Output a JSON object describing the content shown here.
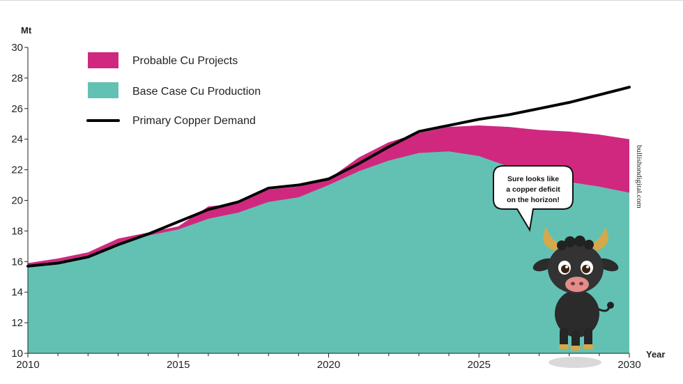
{
  "chart_data": {
    "type": "area",
    "y_unit_label": "Mt",
    "x_axis_label": "Year",
    "xlim": [
      2010,
      2030
    ],
    "ylim": [
      10,
      30
    ],
    "x_ticks": [
      2010,
      2015,
      2020,
      2025,
      2030
    ],
    "y_ticks": [
      10,
      12,
      14,
      16,
      18,
      20,
      22,
      24,
      26,
      28,
      30
    ],
    "grid": false,
    "legend_position": "top-left",
    "x": [
      2010,
      2011,
      2012,
      2013,
      2014,
      2015,
      2016,
      2017,
      2018,
      2019,
      2020,
      2021,
      2022,
      2023,
      2024,
      2025,
      2026,
      2027,
      2028,
      2029,
      2030
    ],
    "series": [
      {
        "name": "Probable Cu Projects",
        "kind": "area-top",
        "color": "#d0287f",
        "values": [
          15.9,
          16.2,
          16.6,
          17.5,
          17.9,
          18.3,
          19.6,
          19.8,
          20.7,
          20.9,
          21.4,
          22.8,
          23.8,
          24.4,
          24.8,
          24.9,
          24.8,
          24.6,
          24.5,
          24.3,
          24.0
        ]
      },
      {
        "name": "Base Case Cu Production",
        "kind": "area",
        "color": "#63c1b4",
        "values": [
          15.7,
          16.0,
          16.4,
          17.1,
          17.7,
          18.1,
          18.8,
          19.2,
          19.9,
          20.2,
          21.0,
          21.9,
          22.6,
          23.1,
          23.2,
          22.9,
          22.2,
          21.6,
          21.2,
          20.9,
          20.5
        ]
      },
      {
        "name": "Primary Copper Demand",
        "kind": "line",
        "color": "#000000",
        "values": [
          15.7,
          15.9,
          16.3,
          17.1,
          17.8,
          18.6,
          19.4,
          19.9,
          20.8,
          21.0,
          21.4,
          22.4,
          23.5,
          24.5,
          24.9,
          25.3,
          25.6,
          26.0,
          26.4,
          26.9,
          27.4
        ]
      }
    ]
  },
  "annotation": {
    "speech_bubble_lines": [
      "Sure looks like",
      "a copper deficit",
      "on the horizon!"
    ],
    "mascot_icon": "bull-icon"
  },
  "watermark": "bullishondigital.com"
}
